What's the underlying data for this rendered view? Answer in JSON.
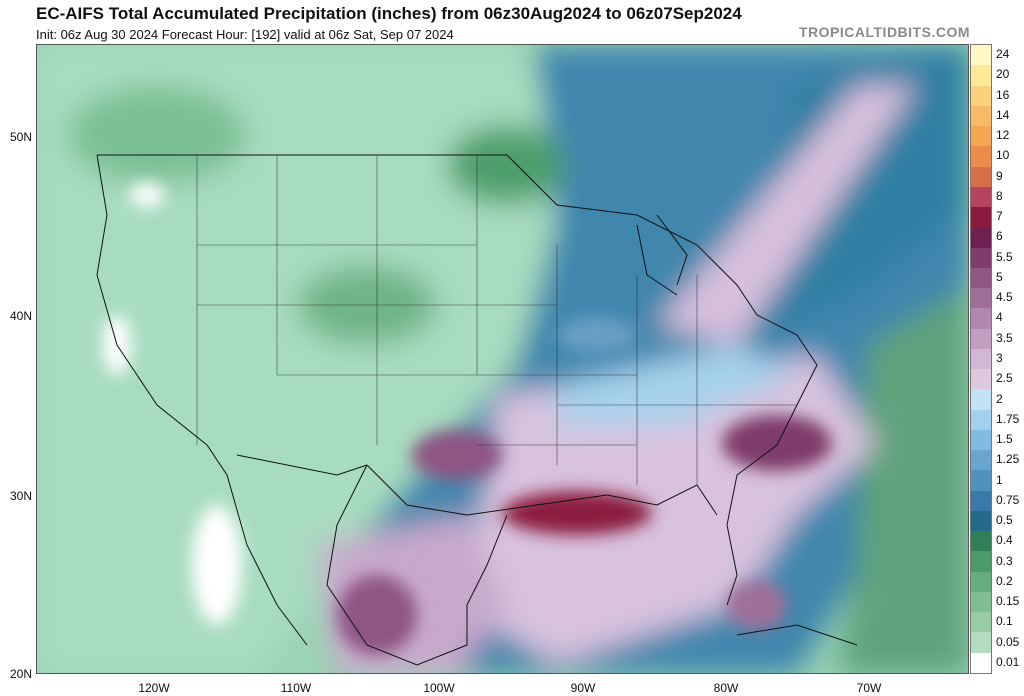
{
  "header": {
    "title": "EC-AIFS Total Accumulated Precipitation (inches) from 06z30Aug2024 to 06z07Sep2024",
    "subtitle": "Init: 06z Aug 30 2024   Forecast Hour: [192]   valid at 06z Sat, Sep 07 2024",
    "brand": "TROPICALTIDBITS.COM"
  },
  "axes": {
    "lat_labels": [
      "50N",
      "40N",
      "30N",
      "20N"
    ],
    "lon_labels": [
      "120W",
      "110W",
      "100W",
      "90W",
      "80W",
      "70W"
    ]
  },
  "legend": {
    "levels": [
      "24",
      "20",
      "16",
      "14",
      "12",
      "10",
      "9",
      "8",
      "7",
      "6",
      "5.5",
      "5",
      "4.5",
      "4",
      "3.5",
      "3",
      "2.5",
      "2",
      "1.75",
      "1.5",
      "1.25",
      "1",
      "0.75",
      "0.5",
      "0.4",
      "0.3",
      "0.2",
      "0.15",
      "0.1",
      "0.05",
      "0.01"
    ],
    "colors": [
      "#fdf8c4",
      "#fde893",
      "#fbd27b",
      "#f8bb65",
      "#f4a653",
      "#eb8c49",
      "#d96e4b",
      "#b8415d",
      "#8c1a3f",
      "#6f2050",
      "#7f3b6b",
      "#8f5583",
      "#a06f99",
      "#b287af",
      "#c29fc2",
      "#d1b7d4",
      "#ddc8e0",
      "#c3e3f5",
      "#a2d0ee",
      "#82bbe1",
      "#68a6d0",
      "#4f91bf",
      "#397aaa",
      "#226a8a",
      "#2f8056",
      "#4c9a67",
      "#65ad7b",
      "#7dbf8f",
      "#96cda3",
      "#b3dcc0",
      "#ffffff"
    ]
  }
}
